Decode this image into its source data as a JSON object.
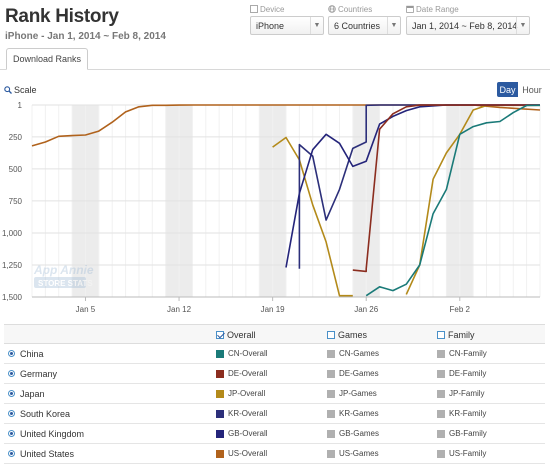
{
  "header": {
    "title": "Rank History",
    "subtitle": "iPhone - Jan 1, 2014 ~ Feb 8, 2014"
  },
  "controls": {
    "device": {
      "label": "Device",
      "value": "iPhone"
    },
    "countries": {
      "label": "Countries",
      "value": "6 Countries"
    },
    "date_range": {
      "label": "Date Range",
      "value": "Jan 1, 2014 ~ Feb 8, 2014"
    }
  },
  "tabs": [
    {
      "label": "Download Ranks"
    }
  ],
  "scale_label": "Scale",
  "granularity": {
    "day": "Day",
    "hour": "Hour",
    "selected": "day"
  },
  "watermark": "App Annie STORE STATS",
  "legend": {
    "headers": {
      "overall": "Overall",
      "games": "Games",
      "family": "Family"
    },
    "rows": [
      {
        "country": "China",
        "overall": "CN-Overall",
        "games": "CN-Games",
        "family": "CN-Family",
        "color": "#1a7a78"
      },
      {
        "country": "Germany",
        "overall": "DE-Overall",
        "games": "DE-Games",
        "family": "DE-Family",
        "color": "#8b2d1f"
      },
      {
        "country": "Japan",
        "overall": "JP-Overall",
        "games": "JP-Games",
        "family": "JP-Family",
        "color": "#b38a1a"
      },
      {
        "country": "South Korea",
        "overall": "KR-Overall",
        "games": "KR-Games",
        "family": "KR-Family",
        "color": "#2c2f7a"
      },
      {
        "country": "United Kingdom",
        "overall": "GB-Overall",
        "games": "GB-Games",
        "family": "GB-Family",
        "color": "#24247a"
      },
      {
        "country": "United States",
        "overall": "US-Overall",
        "games": "US-Games",
        "family": "US-Family",
        "color": "#b0621c"
      }
    ],
    "inactive_color": "#b0b0b0"
  },
  "chart_data": {
    "type": "line",
    "y_tick_labels": [
      "1",
      "250",
      "500",
      "750",
      "1,000",
      "1,250",
      "1,500"
    ],
    "y_ticks": [
      1,
      250,
      500,
      750,
      1000,
      1250,
      1500
    ],
    "ylim": [
      1,
      1500
    ],
    "y_inverted": true,
    "x_tick_labels": [
      "Jan 5",
      "Jan 12",
      "Jan 19",
      "Jan 26",
      "Feb 2"
    ],
    "x_ticks": [
      "2014-01-05",
      "2014-01-12",
      "2014-01-19",
      "2014-01-26",
      "2014-02-02"
    ],
    "xlim": [
      "2014-01-01",
      "2014-02-08"
    ],
    "weekend_bands": [
      [
        "2014-01-04",
        "2014-01-05"
      ],
      [
        "2014-01-11",
        "2014-01-12"
      ],
      [
        "2014-01-18",
        "2014-01-19"
      ],
      [
        "2014-01-25",
        "2014-01-26"
      ],
      [
        "2014-02-01",
        "2014-02-02"
      ]
    ],
    "series": [
      {
        "name": "US-Overall",
        "color": "#b0621c",
        "points": [
          [
            "2014-01-01",
            320
          ],
          [
            "2014-01-02",
            290
          ],
          [
            "2014-01-03",
            245
          ],
          [
            "2014-01-04",
            240
          ],
          [
            "2014-01-05",
            235
          ],
          [
            "2014-01-06",
            205
          ],
          [
            "2014-01-07",
            135
          ],
          [
            "2014-01-08",
            55
          ],
          [
            "2014-01-09",
            15
          ],
          [
            "2014-01-10",
            3
          ],
          [
            "2014-01-11",
            3
          ],
          [
            "2014-01-12",
            2
          ],
          [
            "2014-01-13",
            1
          ],
          [
            "2014-01-20",
            1
          ],
          [
            "2014-01-27",
            1
          ],
          [
            "2014-02-03",
            1
          ],
          [
            "2014-02-05",
            20
          ],
          [
            "2014-02-08",
            40
          ]
        ]
      },
      {
        "name": "JP-Overall",
        "color": "#b38a1a",
        "points": [
          [
            "2014-01-19",
            330
          ],
          [
            "2014-01-20",
            255
          ],
          [
            "2014-01-21",
            430
          ],
          [
            "2014-01-22",
            780
          ],
          [
            "2014-01-23",
            1070
          ],
          [
            "2014-01-24",
            1490
          ],
          [
            "2014-01-25",
            1490
          ]
        ]
      },
      {
        "name": "JP-Overall (late)",
        "color": "#b38a1a",
        "points": [
          [
            "2014-01-29",
            1480
          ],
          [
            "2014-01-30",
            1250
          ],
          [
            "2014-01-31",
            580
          ],
          [
            "2014-02-01",
            375
          ],
          [
            "2014-02-02",
            230
          ],
          [
            "2014-02-03",
            40
          ],
          [
            "2014-02-04",
            5
          ],
          [
            "2014-02-05",
            3
          ],
          [
            "2014-02-08",
            3
          ]
        ]
      },
      {
        "name": "KR-Overall",
        "color": "#2c2f7a",
        "points": [
          [
            "2014-01-21",
            1280
          ],
          [
            "2014-01-21",
            310
          ],
          [
            "2014-01-22",
            400
          ],
          [
            "2014-01-23",
            900
          ],
          [
            "2014-01-24",
            660
          ],
          [
            "2014-01-25",
            340
          ],
          [
            "2014-01-26",
            290
          ],
          [
            "2014-01-26",
            3
          ],
          [
            "2014-01-27",
            1
          ],
          [
            "2014-02-08",
            1
          ]
        ]
      },
      {
        "name": "GB-Overall",
        "color": "#24247a",
        "points": [
          [
            "2014-01-20",
            1270
          ],
          [
            "2014-01-21",
            690
          ],
          [
            "2014-01-22",
            350
          ],
          [
            "2014-01-23",
            230
          ],
          [
            "2014-01-24",
            300
          ],
          [
            "2014-01-25",
            480
          ],
          [
            "2014-01-26",
            440
          ],
          [
            "2014-01-27",
            150
          ],
          [
            "2014-01-28",
            90
          ],
          [
            "2014-01-29",
            45
          ],
          [
            "2014-01-30",
            15
          ],
          [
            "2014-02-01",
            1
          ],
          [
            "2014-02-08",
            1
          ]
        ]
      },
      {
        "name": "DE-Overall",
        "color": "#8b2d1f",
        "points": [
          [
            "2014-01-25",
            1290
          ],
          [
            "2014-01-26",
            1300
          ],
          [
            "2014-01-26",
            1280
          ],
          [
            "2014-01-27",
            190
          ],
          [
            "2014-01-28",
            70
          ],
          [
            "2014-01-29",
            15
          ],
          [
            "2014-01-30",
            2
          ],
          [
            "2014-02-08",
            1
          ]
        ]
      },
      {
        "name": "CN-Overall",
        "color": "#1a7a78",
        "points": [
          [
            "2014-01-26",
            1490
          ],
          [
            "2014-01-27",
            1420
          ],
          [
            "2014-01-28",
            1450
          ],
          [
            "2014-01-29",
            1400
          ],
          [
            "2014-01-30",
            1250
          ],
          [
            "2014-01-31",
            850
          ],
          [
            "2014-02-01",
            660
          ],
          [
            "2014-02-02",
            230
          ],
          [
            "2014-02-03",
            170
          ],
          [
            "2014-02-04",
            140
          ],
          [
            "2014-02-05",
            130
          ],
          [
            "2014-02-06",
            60
          ],
          [
            "2014-02-07",
            5
          ],
          [
            "2014-02-08",
            3
          ]
        ]
      }
    ]
  }
}
